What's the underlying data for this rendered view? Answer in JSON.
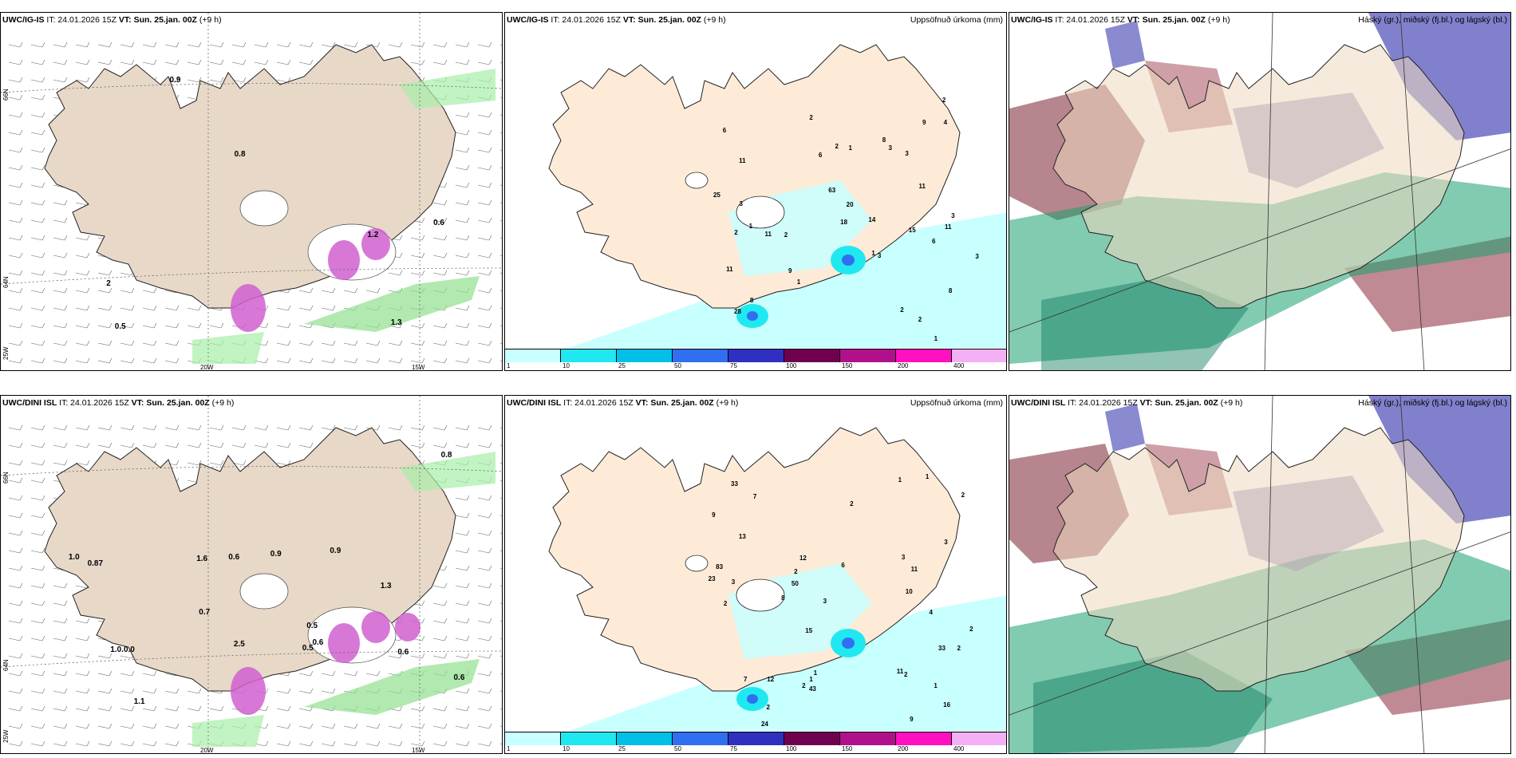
{
  "panels": [
    {
      "model": "UWC/IG-IS",
      "run": "IT: 24.01.2026 15Z",
      "vt": "VT: Sun. 25.jan. 00Z",
      "lead": "(+9 h)",
      "right": ""
    },
    {
      "model": "UWC/IG-IS",
      "run": "IT: 24.01.2026 15Z",
      "vt": "VT: Sun. 25.jan. 00Z",
      "lead": "(+9 h)",
      "right": "Uppsöfnuð úrkoma (mm)"
    },
    {
      "model": "UWC/IG-IS",
      "run": "IT: 24.01.2026 15Z",
      "vt": "VT: Sun. 25.jan. 00Z",
      "lead": "(+9 h)",
      "right": "Háský (gr.), miðský (fj.bl.) og lágský (bl.)"
    },
    {
      "model": "UWC/DINI ISL",
      "run": "IT: 24.01.2026 15Z",
      "vt": "VT: Sun. 25.jan. 00Z",
      "lead": "(+9 h)",
      "right": ""
    },
    {
      "model": "UWC/DINI ISL",
      "run": "IT: 24.01.2026 15Z",
      "vt": "VT: Sun. 25.jan. 00Z",
      "lead": "(+9 h)",
      "right": "Uppsöfnuð úrkoma (mm)"
    },
    {
      "model": "UWC/DINI ISL",
      "run": "IT: 24.01.2026 15Z",
      "vt": "VT: Sun. 25.jan. 00Z",
      "lead": "(+9 h)",
      "right": "Háský (gr.), miðský (fj.bl.) og lágský (bl.)"
    }
  ],
  "axes": {
    "lon1": "20W",
    "lon2": "15W",
    "lat1": "66N",
    "lat2": "64N",
    "lat3": "25W"
  },
  "colorbar": {
    "ticks": [
      "1",
      "10",
      "25",
      "50",
      "75",
      "100",
      "150",
      "200",
      "400"
    ],
    "colors": [
      "#c8ffff",
      "#20e8f0",
      "#00c0e8",
      "#3070f0",
      "#3030c0",
      "#700050",
      "#b0108c",
      "#ff10c0",
      "#f4b0f4"
    ]
  },
  "wind_labels_top": [
    "1.2",
    "0.6",
    "0.5",
    "0.9",
    "0.8",
    "1.3",
    "2"
  ],
  "wind_labels_bottom": [
    "0.6",
    "0.87",
    "0.8",
    "0.5",
    "0.7",
    "0.6",
    "1.3",
    "0.5",
    "1.6",
    "0.9",
    "1.1",
    "1.0",
    "1.0.0.0",
    "2.5",
    "0.6",
    "0.6",
    "0.9"
  ],
  "precip_labels_top": [
    "1",
    "1",
    "1",
    "6",
    "8",
    "11",
    "8",
    "2",
    "3",
    "2",
    "3",
    "2",
    "1",
    "2",
    "14",
    "11",
    "15",
    "20",
    "25",
    "28",
    "2",
    "1",
    "11",
    "3",
    "3",
    "3",
    "11",
    "18",
    "63",
    "4",
    "3",
    "2",
    "9",
    "8",
    "6",
    "6",
    "11",
    "2",
    "9"
  ],
  "precip_labels_bottom": [
    "1",
    "2",
    "1",
    "1",
    "1",
    "2",
    "4",
    "7",
    "3",
    "15",
    "9",
    "11",
    "12",
    "16",
    "23",
    "33",
    "3",
    "2",
    "2",
    "3",
    "2",
    "12",
    "33",
    "24",
    "8",
    "6",
    "7",
    "3",
    "2",
    "2",
    "9",
    "11",
    "50",
    "43",
    "83",
    "2",
    "1",
    "2",
    "13",
    "10"
  ]
}
